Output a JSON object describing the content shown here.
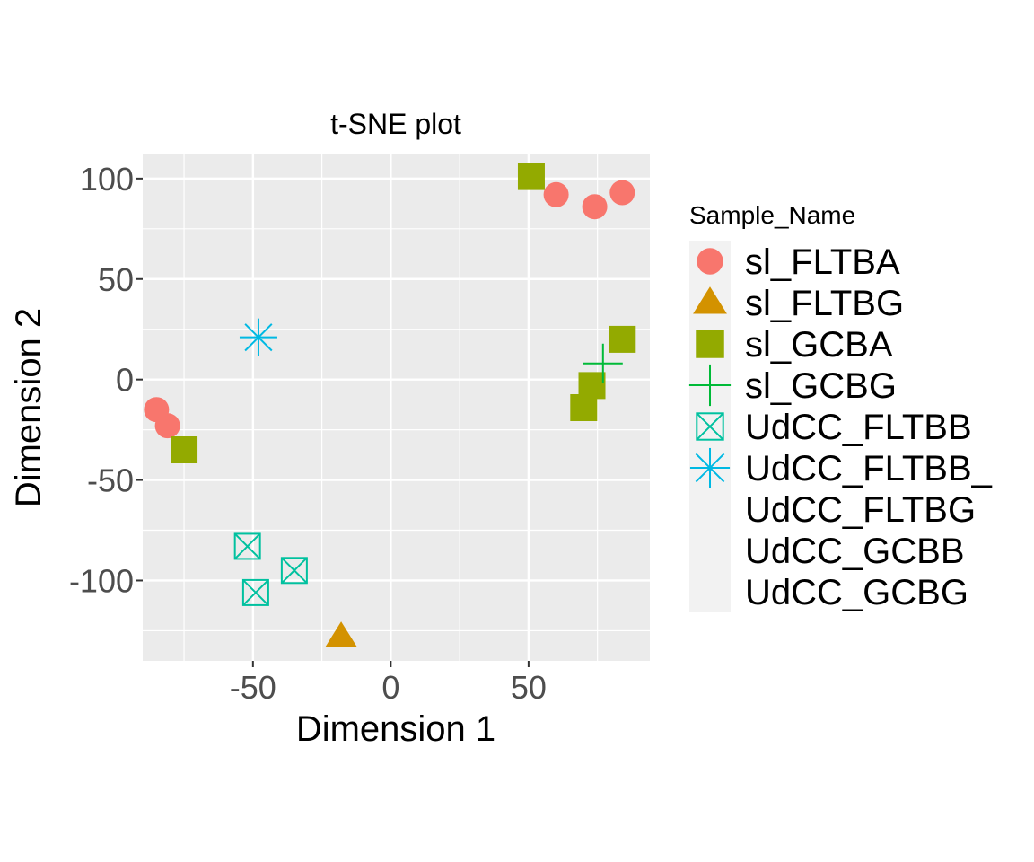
{
  "chart_data": {
    "type": "scatter",
    "title": "t-SNE plot",
    "xlabel": "Dimension 1",
    "ylabel": "Dimension 2",
    "xlim": [
      -90,
      94
    ],
    "ylim": [
      -140,
      112
    ],
    "x_ticks": [
      -50,
      0,
      50
    ],
    "y_ticks": [
      100,
      50,
      0,
      -50,
      -100
    ],
    "x_tick_labels": [
      "-50",
      "0",
      "50"
    ],
    "y_tick_labels": [
      "100",
      "50",
      "0",
      "-50",
      "-100"
    ],
    "grid": true,
    "legend": {
      "title": "Sample_Name",
      "placement": "right",
      "entries": [
        {
          "label": "sl_FLTBA",
          "shape": "circle",
          "color": "#F8766D"
        },
        {
          "label": "sl_FLTBG",
          "shape": "triangle",
          "color": "#D39200"
        },
        {
          "label": "sl_GCBA",
          "shape": "square",
          "color": "#93AA00"
        },
        {
          "label": "sl_GCBG",
          "shape": "plus",
          "color": "#00BA38"
        },
        {
          "label": "UdCC_FLTBB",
          "shape": "boxed-x",
          "color": "#00C19F"
        },
        {
          "label": "UdCC_FLTBB_",
          "shape": "asterisk",
          "color": "#00B9E3"
        },
        {
          "label": "UdCC_FLTBG",
          "shape": "none",
          "color": "#619CFF"
        },
        {
          "label": "UdCC_GCBB",
          "shape": "none",
          "color": "#DB72FB"
        },
        {
          "label": "UdCC_GCBG",
          "shape": "none",
          "color": "#FF61C3"
        }
      ]
    },
    "series": [
      {
        "name": "sl_FLTBA",
        "shape": "circle",
        "color": "#F8766D",
        "points": [
          [
            60,
            92
          ],
          [
            74,
            86
          ],
          [
            84,
            93
          ],
          [
            -85,
            -15
          ],
          [
            -81,
            -23
          ]
        ]
      },
      {
        "name": "sl_FLTBG",
        "shape": "triangle",
        "color": "#D39200",
        "points": [
          [
            -18,
            -128
          ]
        ]
      },
      {
        "name": "sl_GCBA",
        "shape": "square",
        "color": "#93AA00",
        "points": [
          [
            51,
            101
          ],
          [
            84,
            20
          ],
          [
            73,
            -3
          ],
          [
            70,
            -14
          ],
          [
            -75,
            -35
          ]
        ]
      },
      {
        "name": "sl_GCBG",
        "shape": "plus",
        "color": "#00BA38",
        "points": [
          [
            77,
            8
          ]
        ]
      },
      {
        "name": "UdCC_FLTBB",
        "shape": "boxed-x",
        "color": "#00C19F",
        "points": [
          [
            -52,
            -83
          ],
          [
            -35,
            -95
          ],
          [
            -49,
            -106
          ]
        ]
      },
      {
        "name": "UdCC_FLTBB_",
        "shape": "asterisk",
        "color": "#00B9E3",
        "points": [
          [
            -48,
            21
          ]
        ]
      }
    ]
  }
}
